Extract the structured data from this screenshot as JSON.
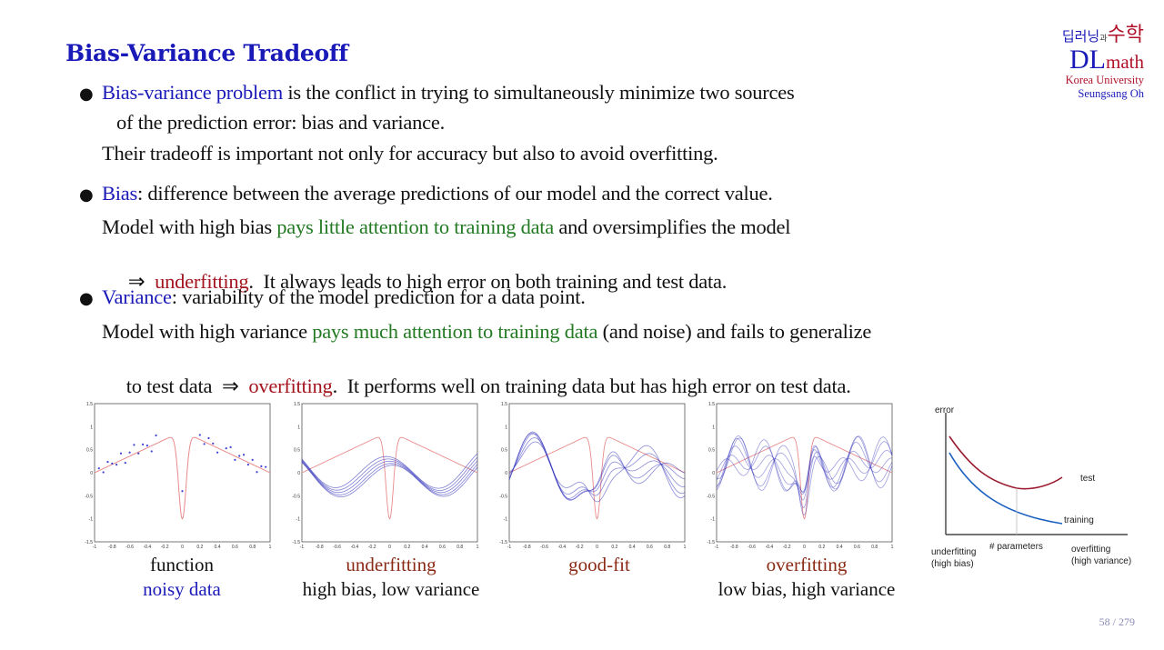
{
  "title": "Bias-Variance Tradeoff",
  "logo": {
    "korean_a": "딥러닝",
    "korean_b": "과",
    "korean_c": "수학",
    "dl": "DL",
    "math": "math",
    "university": "Korea University",
    "author": "Seungsang Oh"
  },
  "bullets": [
    {
      "term": "Bias-variance problem",
      "line1_rest": " is the conflict in trying to simultaneously minimize two sources",
      "line2": "of the prediction error:  bias and variance.",
      "line3": "Their tradeoff is important not only for accuracy but also to avoid overfitting."
    },
    {
      "term": "Bias",
      "line1_rest": ":  difference between the average predictions of our model and the correct value.",
      "line2_a": "Model with high bias ",
      "line2_green": "pays little attention to training data",
      "line2_b": " and oversimplifies the model",
      "line3_arrow": "⇒  ",
      "line3_red": "underfitting",
      "line3_b": ".  It always leads to high error on both training and test data."
    },
    {
      "term": "Variance",
      "line1_rest": ":  variability of the model prediction for a data point.",
      "line2_a": "Model with high variance ",
      "line2_green": "pays much attention to training data",
      "line2_b": " (and noise) and fails to generalize",
      "line3_a": "to test data  ⇒  ",
      "line3_red": "overfitting",
      "line3_b": ".  It performs well on training data but has high error on test data."
    }
  ],
  "captions": {
    "p1_top": "function",
    "p1_bottom": "noisy data",
    "p2_top": "underfitting",
    "p2_bottom": "high bias, low variance",
    "p3_top": "good-fit",
    "p4_top": "overfitting",
    "p4_bottom": "low bias, high variance"
  },
  "plot_axis": {
    "y_ticks": [
      "1.5",
      "1",
      "0.5",
      "0",
      "-0.5",
      "-1",
      "-1.5"
    ],
    "x_ticks": [
      "-1",
      "-0.8",
      "-0.6",
      "-0.4",
      "-0.2",
      "0",
      "0.2",
      "0.4",
      "0.6",
      "0.8",
      "1"
    ]
  },
  "tradeoff": {
    "y_label": "error",
    "test_label": "test",
    "training_label": "training",
    "x_label": "# parameters",
    "left_label_1": "underfitting",
    "left_label_2": "(high bias)",
    "right_label_1": "overfitting",
    "right_label_2": "(high variance)"
  },
  "colors": {
    "title_blue": "#1a1ab8",
    "term_green": "#237a23",
    "term_red": "#a3161f",
    "function_red": "#e88a8a",
    "fit_blue": "#2a2ab8",
    "test_curve": "#9b1b30",
    "training_curve": "#1a5fc0"
  },
  "page": {
    "current": "58",
    "total": "279",
    "separator": " / "
  }
}
